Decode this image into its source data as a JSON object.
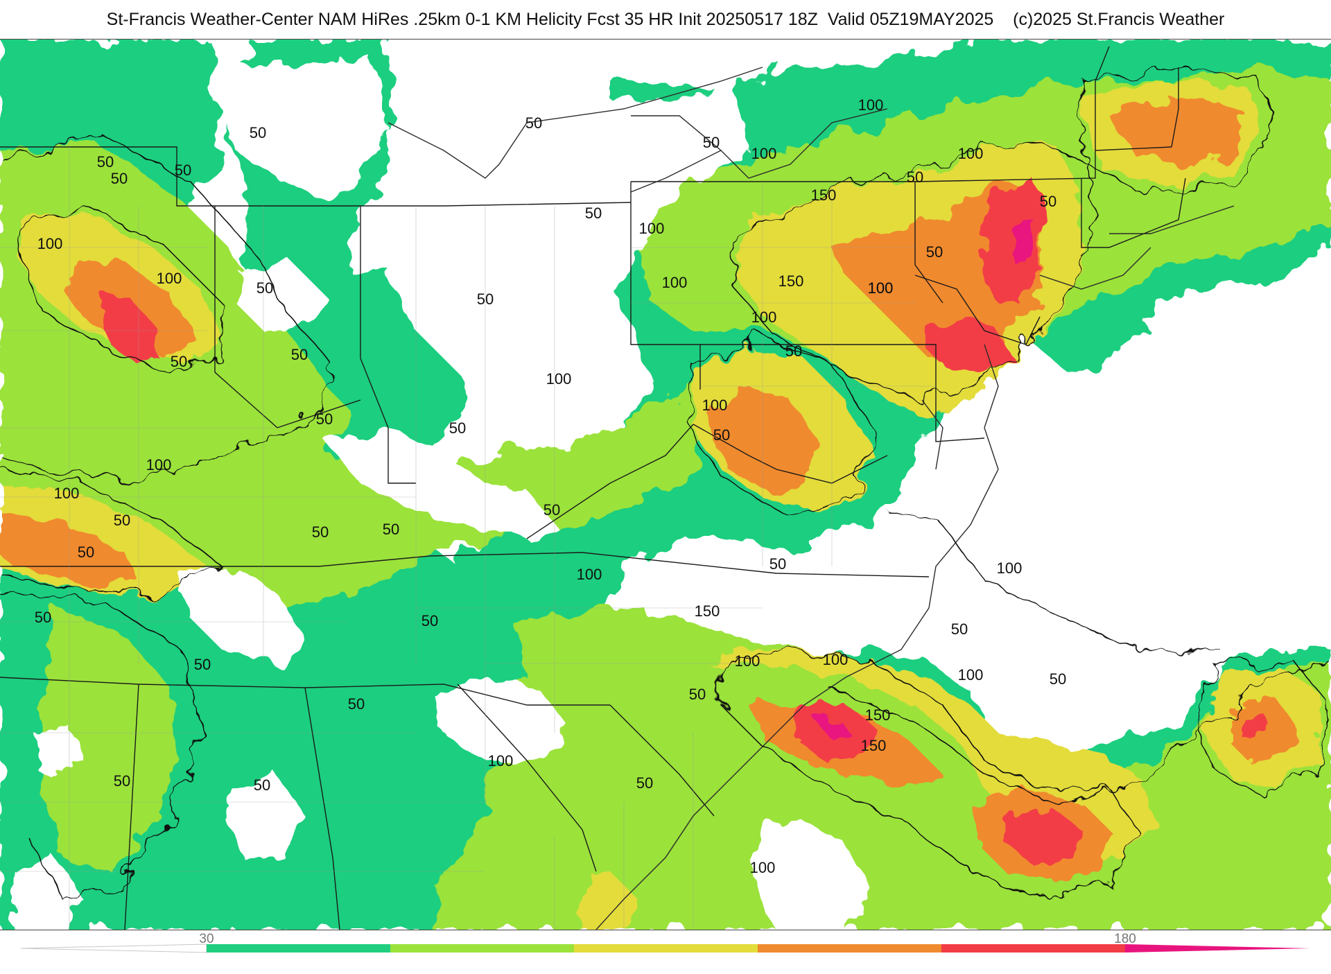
{
  "title": "St-Francis Weather-Center NAM HiRes .25km 0-1 KM Helicity Fcst 35 HR Init 20250517 18Z  Valid 05Z19MAY2025    (c)2025 St.Francis Weather",
  "colors": {
    "green": "#1fce7f",
    "light_green": "#9be23a",
    "yellow": "#e3dc3a",
    "orange": "#f08a2e",
    "red": "#f23c46",
    "magenta": "#e8147e"
  },
  "legend": {
    "ticks": [
      "30",
      "180"
    ]
  },
  "contours": {
    "labels": [
      "50",
      "50",
      "50",
      "50",
      "50",
      "50",
      "100",
      "100",
      "50",
      "50",
      "50",
      "50",
      "100",
      "100",
      "50",
      "50",
      "50",
      "50",
      "50",
      "50",
      "50",
      "50",
      "50",
      "50",
      "50",
      "50",
      "100",
      "100",
      "100",
      "100",
      "150",
      "150",
      "150",
      "100",
      "100",
      "100",
      "100",
      "100",
      "50",
      "50",
      "50",
      "100",
      "100",
      "150",
      "150",
      "100",
      "100",
      "100",
      "100",
      "50",
      "50",
      "50",
      "50",
      "50",
      "50",
      "100",
      "100",
      "50",
      "50",
      "50"
    ]
  }
}
